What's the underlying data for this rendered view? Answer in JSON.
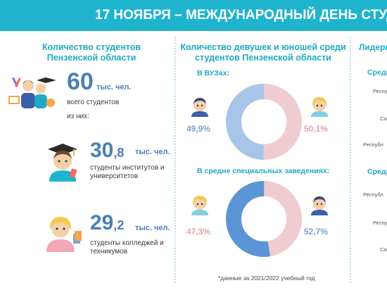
{
  "banner": {
    "title": "17 НОЯБРЯ – МЕЖДУНАРОДНЫЙ ДЕНЬ СТУД"
  },
  "left": {
    "title_line1": "Количество студентов",
    "title_line2": "Пензенской области",
    "total": {
      "value": "60",
      "unit": "тыс. чел.",
      "caption": "всего студентов"
    },
    "of_them": "из них:",
    "universities": {
      "int": "30",
      "frac": ",8",
      "unit": "тыс. чел.",
      "caption_line1": "студенты институтов и",
      "caption_line2": "университетов"
    },
    "colleges": {
      "int": "29",
      "frac": ",2",
      "unit": "тыс. чел.",
      "caption_line1": "студенты колледжей и",
      "caption_line2": "техникумов"
    }
  },
  "middle": {
    "title_line1": "Количество девушек и юношей среди",
    "title_line2": "студентов Пензенской области",
    "vuz": {
      "label": "В ВУЗах:",
      "male_pct": "49,9%",
      "female_pct": "50,1%",
      "male": 49.9,
      "female": 50.1
    },
    "spo": {
      "label": "В средне специальных заведениях:",
      "male_pct": "52,7%",
      "female_pct": "47,3%",
      "male": 52.7,
      "female": 47.3
    },
    "footnote": "*данные  за 2021/2022 учебный год",
    "colors": {
      "male": "#a7c5e8",
      "female": "#f0ccd0"
    }
  },
  "right": {
    "title": "Лидерь",
    "section1": "Среди",
    "section2": "Среди",
    "items": [
      "Респу",
      "Са",
      "Республ",
      "Республ",
      "Республ",
      "Са"
    ]
  }
}
